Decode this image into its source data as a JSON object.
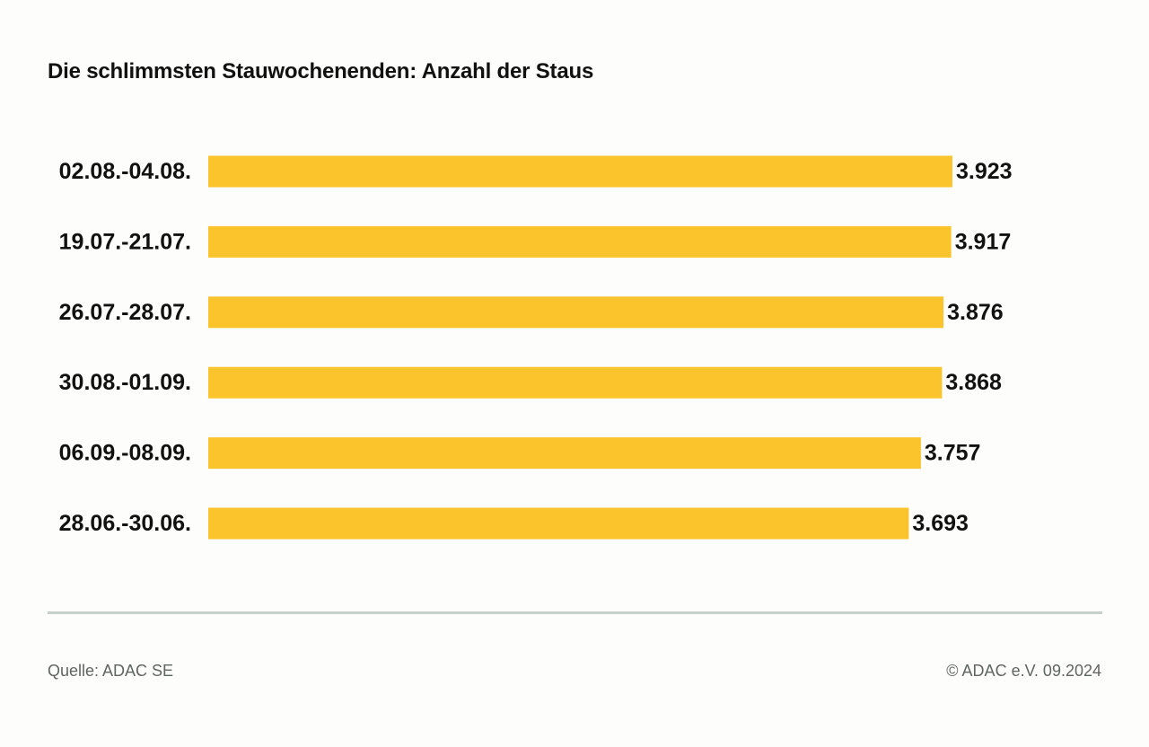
{
  "title": "Die schlimmsten Stauwochenenden: Anzahl der Staus",
  "footer": {
    "source": "Quelle: ADAC SE",
    "copyright": "© ADAC e.V. 09.2024"
  },
  "colors": {
    "bar": "#fcc42c",
    "text": "#111111",
    "footer_text": "#5f6563",
    "divider": "#c9cfcd"
  },
  "chart_data": {
    "type": "bar",
    "orientation": "horizontal",
    "title": "Die schlimmsten Stauwochenenden: Anzahl der Staus",
    "categories": [
      "02.08.-04.08.",
      "19.07.-21.07.",
      "26.07.-28.07.",
      "30.08.-01.09.",
      "06.09.-08.09.",
      "28.06.-30.06."
    ],
    "values": [
      3923,
      3917,
      3876,
      3868,
      3757,
      3693
    ],
    "value_labels": [
      "3.923",
      "3.917",
      "3.876",
      "3.868",
      "3.757",
      "3.693"
    ],
    "xlabel": "",
    "ylabel": "",
    "xlim": [
      0,
      3923
    ],
    "grid": false,
    "legend": "none"
  }
}
